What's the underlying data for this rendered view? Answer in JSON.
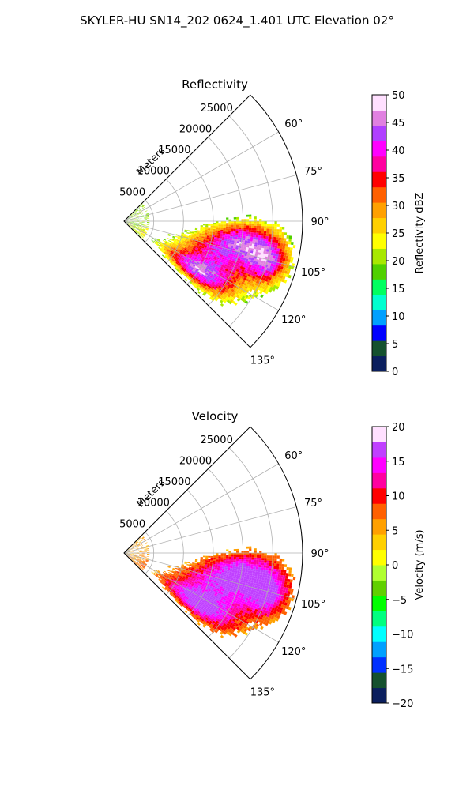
{
  "figure": {
    "title": "SKYLER-HU  SN14_202  0624_1.401 UTC Elevation 02°"
  },
  "chart_data": [
    {
      "type": "heatmap",
      "projection": "polar-sector",
      "title": "Reflectivity",
      "radial_axis_label": "Meters",
      "radial_ticks": [
        "5000",
        "10000",
        "15000",
        "20000",
        "25000"
      ],
      "radial_tick_values": [
        5000,
        10000,
        15000,
        20000,
        25000
      ],
      "rlim": [
        0,
        30000
      ],
      "angular_ticks": [
        "60°",
        "75°",
        "90°",
        "105°",
        "120°",
        "135°"
      ],
      "angular_tick_values": [
        60,
        75,
        90,
        105,
        120,
        135
      ],
      "theta_range_deg": [
        45,
        135
      ],
      "grid": true,
      "colorbar": {
        "label": "Reflectivity dBZ",
        "range": [
          0,
          50
        ],
        "ticks": [
          "0",
          "5",
          "10",
          "15",
          "20",
          "25",
          "30",
          "35",
          "40",
          "45",
          "50"
        ],
        "tick_values": [
          0,
          5,
          10,
          15,
          20,
          25,
          30,
          35,
          40,
          45,
          50
        ],
        "colormap": [
          "#0b1f5e",
          "#15512e",
          "#0000ff",
          "#00a0ff",
          "#00ffd0",
          "#00ff60",
          "#50d000",
          "#a8e800",
          "#ffff00",
          "#ffd000",
          "#ffa000",
          "#ff6000",
          "#ff0000",
          "#ff00a0",
          "#ff00ff",
          "#b040ff",
          "#e080e0",
          "#ffe0ff"
        ]
      }
    },
    {
      "type": "heatmap",
      "projection": "polar-sector",
      "title": "Velocity",
      "radial_axis_label": "Meters",
      "radial_ticks": [
        "5000",
        "10000",
        "15000",
        "20000",
        "25000"
      ],
      "radial_tick_values": [
        5000,
        10000,
        15000,
        20000,
        25000
      ],
      "rlim": [
        0,
        30000
      ],
      "angular_ticks": [
        "60°",
        "75°",
        "90°",
        "105°",
        "120°",
        "135°"
      ],
      "angular_tick_values": [
        60,
        75,
        90,
        105,
        120,
        135
      ],
      "theta_range_deg": [
        45,
        135
      ],
      "grid": true,
      "colorbar": {
        "label": "Velocity (m/s)",
        "range": [
          -20,
          20
        ],
        "ticks": [
          "−20",
          "−15",
          "−10",
          "−5",
          "0",
          "5",
          "10",
          "15",
          "20"
        ],
        "tick_values": [
          -20,
          -15,
          -10,
          -5,
          0,
          5,
          10,
          15,
          20
        ],
        "colormap": [
          "#0b1f5e",
          "#15512e",
          "#0030ff",
          "#00a0ff",
          "#00ffff",
          "#00ff80",
          "#00ff00",
          "#60d000",
          "#b0ff30",
          "#ffff00",
          "#ffd000",
          "#ffa000",
          "#ff6000",
          "#ff0000",
          "#ff00a0",
          "#ff00ff",
          "#c040ff",
          "#ffe0ff"
        ]
      }
    }
  ]
}
